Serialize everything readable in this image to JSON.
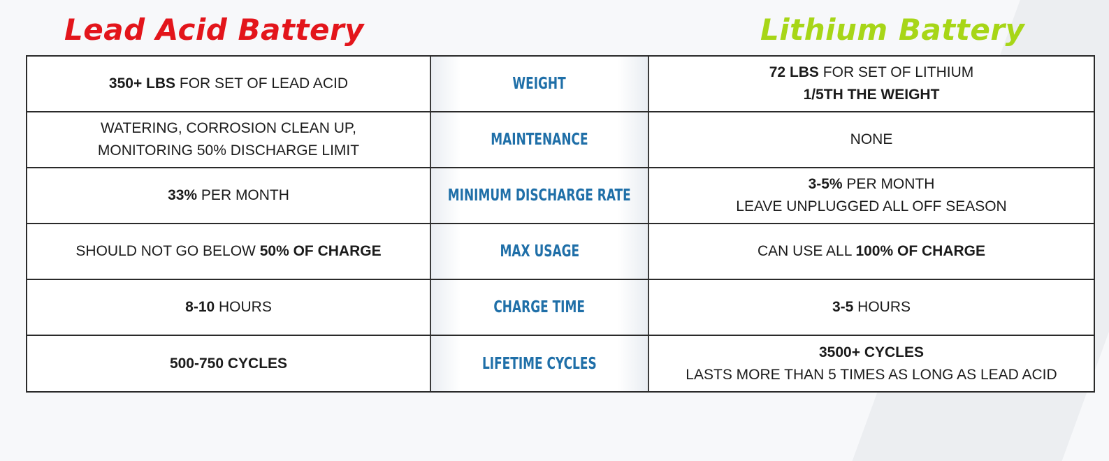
{
  "header": {
    "left_title": "Lead Acid Battery",
    "right_title": "Lithium Battery"
  },
  "colors": {
    "lead_acid_title": "#e3151b",
    "lithium_title": "#a7d617",
    "category_label": "#1f6fa8"
  },
  "rows": [
    {
      "category": "WEIGHT",
      "lead_acid": [
        {
          "bold": "350+ LBS",
          "text": " FOR SET OF LEAD ACID"
        }
      ],
      "lithium": [
        {
          "bold": "72 LBS",
          "text": " FOR SET OF LITHIUM"
        },
        {
          "bold": "1/5TH THE WEIGHT",
          "text": ""
        }
      ]
    },
    {
      "category": "MAINTENANCE",
      "lead_acid": [
        {
          "bold": "",
          "text": "WATERING, CORROSION CLEAN UP,"
        },
        {
          "bold": "",
          "text": "MONITORING 50% DISCHARGE LIMIT"
        }
      ],
      "lithium": [
        {
          "bold": "",
          "text": "NONE"
        }
      ]
    },
    {
      "category": "MINIMUM DISCHARGE RATE",
      "lead_acid": [
        {
          "bold": "33%",
          "text": " PER MONTH"
        }
      ],
      "lithium": [
        {
          "bold": "3-5%",
          "text": " PER MONTH"
        },
        {
          "bold": "",
          "text": "LEAVE UNPLUGGED ALL OFF SEASON"
        }
      ]
    },
    {
      "category": "MAX USAGE",
      "lead_acid": [
        {
          "pre": "SHOULD NOT GO BELOW ",
          "bold": "50% OF CHARGE",
          "text": ""
        }
      ],
      "lithium": [
        {
          "pre": "CAN USE ALL ",
          "bold": "100% OF CHARGE",
          "text": ""
        }
      ]
    },
    {
      "category": "CHARGE TIME",
      "lead_acid": [
        {
          "bold": "8-10",
          "text": " HOURS"
        }
      ],
      "lithium": [
        {
          "bold": "3-5",
          "text": " HOURS"
        }
      ]
    },
    {
      "category": "LIFETIME CYCLES",
      "lead_acid": [
        {
          "bold": "500-750 CYCLES",
          "text": ""
        }
      ],
      "lithium": [
        {
          "bold": "3500+ CYCLES",
          "text": ""
        },
        {
          "bold": "",
          "text": "LASTS MORE THAN 5 TIMES AS LONG AS LEAD ACID"
        }
      ]
    }
  ]
}
